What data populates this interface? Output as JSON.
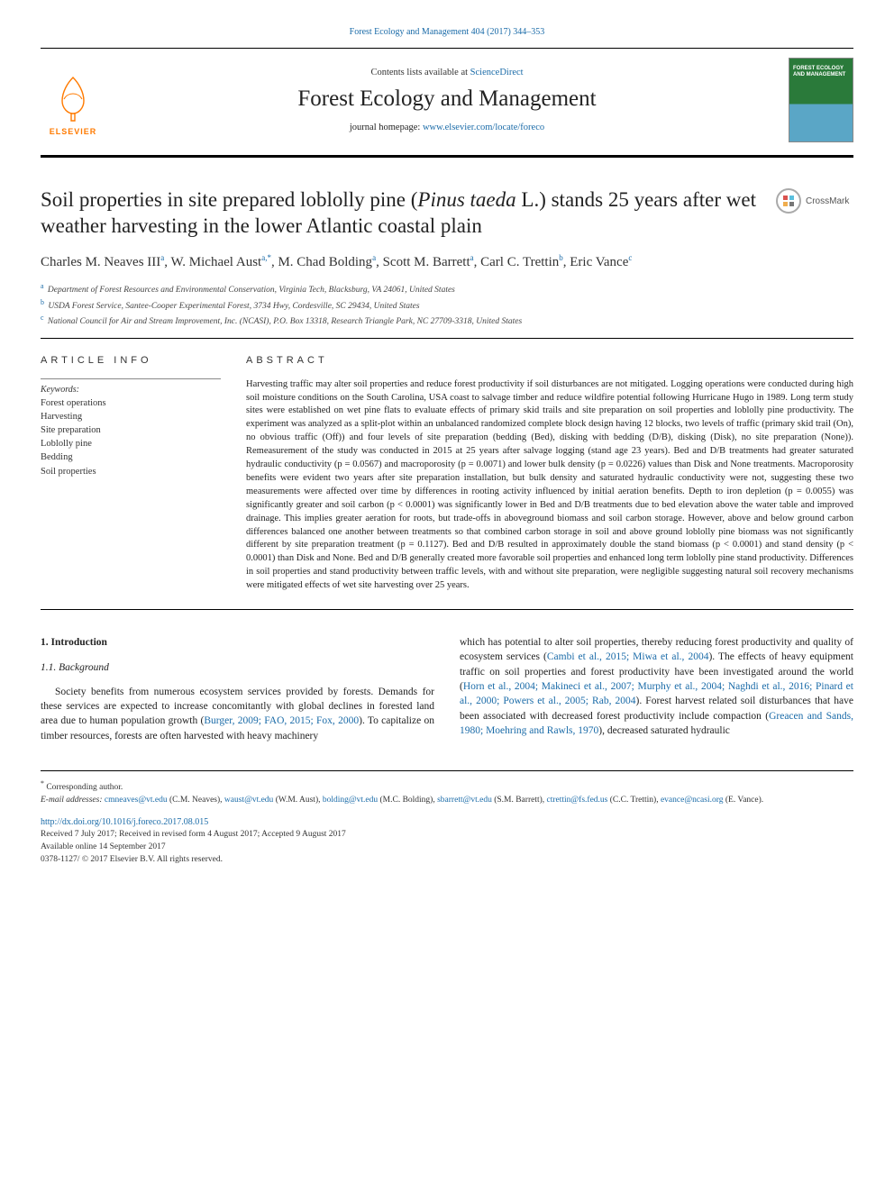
{
  "citation": "Forest Ecology and Management 404 (2017) 344–353",
  "header": {
    "contents_prefix": "Contents lists available at ",
    "contents_link": "ScienceDirect",
    "journal_title": "Forest Ecology and Management",
    "homepage_prefix": "journal homepage: ",
    "homepage_url": "www.elsevier.com/locate/foreco",
    "publisher_label": "ELSEVIER",
    "cover_text": "FOREST ECOLOGY AND MANAGEMENT"
  },
  "crossmark_label": "CrossMark",
  "title_parts": {
    "pre": "Soil properties in site prepared loblolly pine (",
    "italic": "Pinus taeda",
    "post": " L.) stands 25 years after wet weather harvesting in the lower Atlantic coastal plain"
  },
  "authors_html": "Charles M. Neaves III<sup>a</sup>, W. Michael Aust<sup>a,*</sup>, M. Chad Bolding<sup>a</sup>, Scott M. Barrett<sup>a</sup>, Carl C. Trettin<sup>b</sup>, Eric Vance<sup>c</sup>",
  "affiliations": [
    {
      "sup": "a",
      "text": "Department of Forest Resources and Environmental Conservation, Virginia Tech, Blacksburg, VA 24061, United States"
    },
    {
      "sup": "b",
      "text": "USDA Forest Service, Santee-Cooper Experimental Forest, 3734 Hwy, Cordesville, SC 29434, United States"
    },
    {
      "sup": "c",
      "text": "National Council for Air and Stream Improvement, Inc. (NCASI), P.O. Box 13318, Research Triangle Park, NC 27709-3318, United States"
    }
  ],
  "article_info": {
    "label": "ARTICLE INFO",
    "keywords_label": "Keywords:",
    "keywords": [
      "Forest operations",
      "Harvesting",
      "Site preparation",
      "Loblolly pine",
      "Bedding",
      "Soil properties"
    ]
  },
  "abstract": {
    "label": "ABSTRACT",
    "text": "Harvesting traffic may alter soil properties and reduce forest productivity if soil disturbances are not mitigated. Logging operations were conducted during high soil moisture conditions on the South Carolina, USA coast to salvage timber and reduce wildfire potential following Hurricane Hugo in 1989. Long term study sites were established on wet pine flats to evaluate effects of primary skid trails and site preparation on soil properties and loblolly pine productivity. The experiment was analyzed as a split-plot within an unbalanced randomized complete block design having 12 blocks, two levels of traffic (primary skid trail (On), no obvious traffic (Off)) and four levels of site preparation (bedding (Bed), disking with bedding (D/B), disking (Disk), no site preparation (None)). Remeasurement of the study was conducted in 2015 at 25 years after salvage logging (stand age 23 years). Bed and D/B treatments had greater saturated hydraulic conductivity (p = 0.0567) and macroporosity (p = 0.0071) and lower bulk density (p = 0.0226) values than Disk and None treatments. Macroporosity benefits were evident two years after site preparation installation, but bulk density and saturated hydraulic conductivity were not, suggesting these two measurements were affected over time by differences in rooting activity influenced by initial aeration benefits. Depth to iron depletion (p = 0.0055) was significantly greater and soil carbon (p < 0.0001) was significantly lower in Bed and D/B treatments due to bed elevation above the water table and improved drainage. This implies greater aeration for roots, but trade-offs in aboveground biomass and soil carbon storage. However, above and below ground carbon differences balanced one another between treatments so that combined carbon storage in soil and above ground loblolly pine biomass was not significantly different by site preparation treatment (p = 0.1127). Bed and D/B resulted in approximately double the stand biomass (p < 0.0001) and stand density (p < 0.0001) than Disk and None. Bed and D/B generally created more favorable soil properties and enhanced long term loblolly pine stand productivity. Differences in soil properties and stand productivity between traffic levels, with and without site preparation, were negligible suggesting natural soil recovery mechanisms were mitigated effects of wet site harvesting over 25 years."
  },
  "body": {
    "section_heading": "1. Introduction",
    "subsection_heading": "1.1. Background",
    "col1_para": "Society benefits from numerous ecosystem services provided by forests. Demands for these services are expected to increase concomitantly with global declines in forested land area due to human population growth (",
    "col1_ref1": "Burger, 2009; FAO, 2015; Fox, 2000",
    "col1_para_end": "). To capitalize on timber resources, forests are often harvested with heavy machinery",
    "col2_para1": "which has potential to alter soil properties, thereby reducing forest productivity and quality of ecosystem services (",
    "col2_ref1": "Cambi et al., 2015; Miwa et al., 2004",
    "col2_para1_mid": "). The effects of heavy equipment traffic on soil properties and forest productivity have been investigated around the world (",
    "col2_ref2": "Horn et al., 2004; Makineci et al., 2007; Murphy et al., 2004; Naghdi et al., 2016; Pinard et al., 2000; Powers et al., 2005; Rab, 2004",
    "col2_para1_end": "). Forest harvest related soil disturbances that have been associated with decreased forest productivity include compaction (",
    "col2_ref3": "Greacen and Sands, 1980; Moehring and Rawls, 1970",
    "col2_para1_tail": "), decreased saturated hydraulic"
  },
  "footer": {
    "corr_note": "Corresponding author.",
    "email_label": "E-mail addresses:",
    "emails": [
      {
        "addr": "cmneaves@vt.edu",
        "who": "(C.M. Neaves)"
      },
      {
        "addr": "waust@vt.edu",
        "who": "(W.M. Aust)"
      },
      {
        "addr": "bolding@vt.edu",
        "who": "(M.C. Bolding)"
      },
      {
        "addr": "sbarrett@vt.edu",
        "who": "(S.M. Barrett)"
      },
      {
        "addr": "ctrettin@fs.fed.us",
        "who": "(C.C. Trettin)"
      },
      {
        "addr": "evance@ncasi.org",
        "who": "(E. Vance)."
      }
    ],
    "doi": "http://dx.doi.org/10.1016/j.foreco.2017.08.015",
    "received": "Received 7 July 2017; Received in revised form 4 August 2017; Accepted 9 August 2017",
    "available": "Available online 14 September 2017",
    "copyright": "0378-1127/ © 2017 Elsevier B.V. All rights reserved."
  },
  "colors": {
    "link": "#1a6ba8",
    "publisher_orange": "#ff7a00",
    "rule": "#000000",
    "text": "#222222"
  }
}
